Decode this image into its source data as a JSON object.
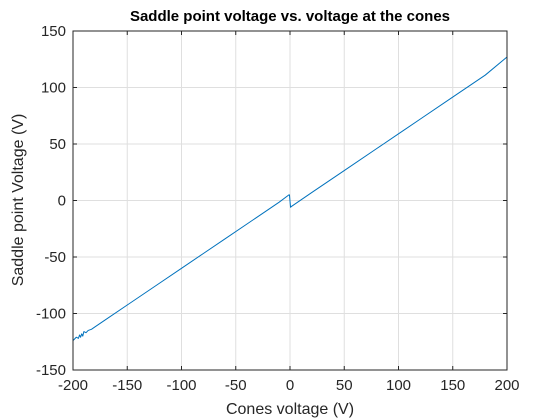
{
  "chart_data": {
    "type": "line",
    "title": "Saddle point voltage vs. voltage at the cones",
    "xlabel": "Cones voltage (V)",
    "ylabel": "Saddle point Voltage (V)",
    "xlim": [
      -200,
      200
    ],
    "ylim": [
      -150,
      150
    ],
    "xticks": [
      -200,
      -150,
      -100,
      -50,
      0,
      50,
      100,
      150,
      200
    ],
    "yticks": [
      -150,
      -100,
      -50,
      0,
      50,
      100,
      150
    ],
    "xtick_labels": [
      "-200",
      "-150",
      "-100",
      "-50",
      "0",
      "50",
      "100",
      "150",
      "200"
    ],
    "ytick_labels": [
      "-150",
      "-100",
      "-50",
      "0",
      "50",
      "100",
      "150"
    ],
    "grid": true,
    "line_color": "#0072BD",
    "series": [
      {
        "x": [
          -200,
          -197,
          -195,
          -194,
          -193,
          -192,
          -191,
          -190,
          -188,
          -186,
          -183,
          -180,
          -170,
          -150,
          -120,
          -100,
          -80,
          -60,
          -40,
          -20,
          -10,
          -1,
          -0.5,
          0.5,
          1,
          20,
          50,
          80,
          100,
          120,
          150,
          180,
          200
        ],
        "y": [
          -124,
          -121,
          -122,
          -119,
          -121,
          -118,
          -120,
          -116,
          -117,
          -115,
          -114,
          -112,
          -105.5,
          -92.5,
          -73,
          -60,
          -47,
          -34,
          -21,
          -8,
          -1.5,
          5,
          5,
          -6,
          -5.5,
          7,
          26.5,
          46,
          59,
          72,
          91.5,
          111,
          127
        ]
      }
    ]
  }
}
